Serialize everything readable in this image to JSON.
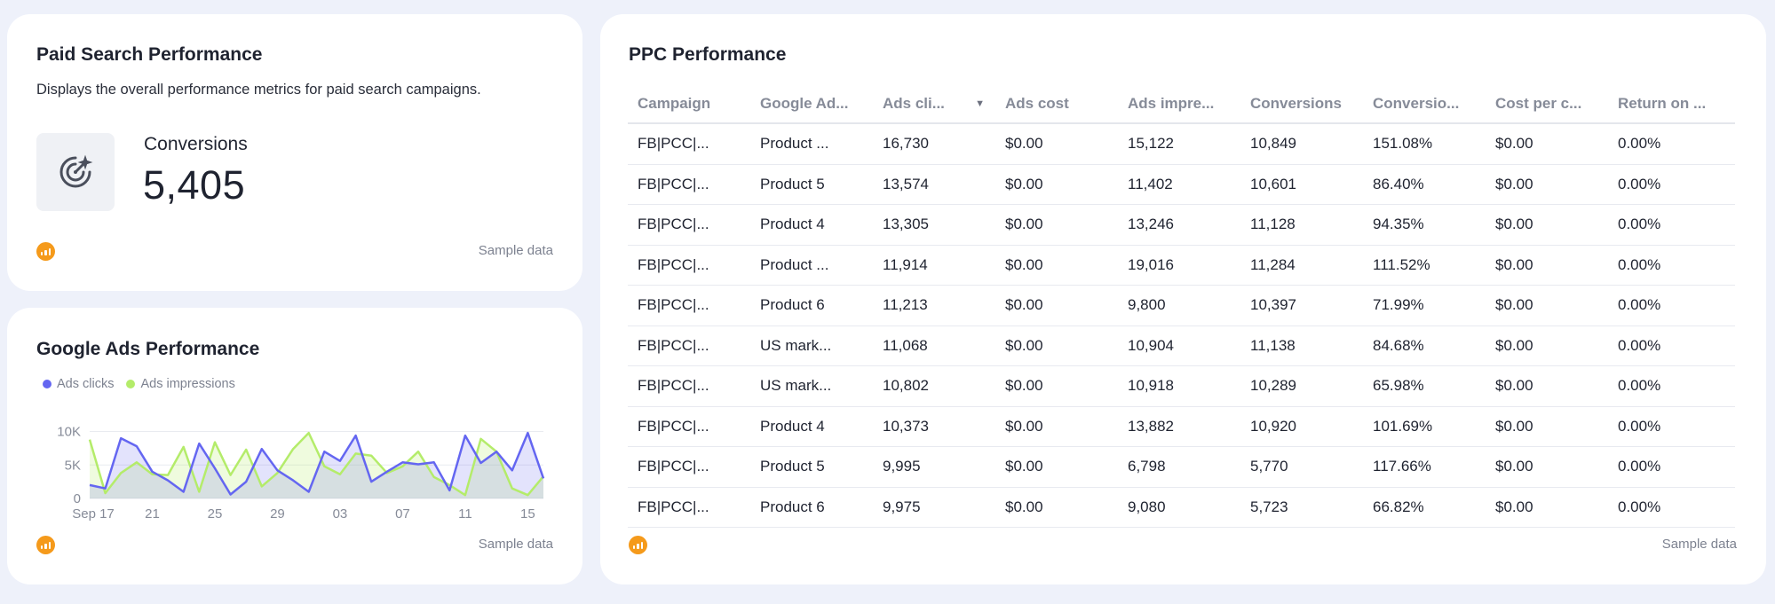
{
  "paid_search": {
    "title": "Paid Search Performance",
    "description": "Displays the overall performance metrics for paid search campaigns.",
    "metric_label": "Conversions",
    "metric_value": "5,405",
    "icon": "target-sparkle-icon",
    "footer": "Sample data"
  },
  "google_ads": {
    "title": "Google Ads Performance",
    "footer": "Sample data",
    "chart_data": {
      "type": "area",
      "legend_position": "top-left",
      "grid": true,
      "x_tick_labels": [
        "Sep 17",
        "21",
        "25",
        "29",
        "03",
        "07",
        "11",
        "15"
      ],
      "y_tick_labels": [
        "10K",
        "5K",
        "0"
      ],
      "ylim": [
        0,
        11000
      ],
      "series": [
        {
          "name": "Ads clicks",
          "color": "#6466f1",
          "values": [
            2000,
            1500,
            9000,
            7800,
            4000,
            2700,
            1000,
            8200,
            4500,
            600,
            2500,
            7400,
            4200,
            2700,
            1000,
            7000,
            5600,
            9400,
            2500,
            4000,
            5400,
            5100,
            5400,
            1200,
            9400,
            5300,
            7000,
            4200,
            9800,
            3000
          ]
        },
        {
          "name": "Ads impressions",
          "color": "#b4ec6a",
          "values": [
            8800,
            800,
            3800,
            5400,
            3600,
            3500,
            7700,
            1000,
            8400,
            3500,
            7300,
            1800,
            3800,
            7400,
            9800,
            4800,
            3600,
            6700,
            6400,
            3800,
            4800,
            7000,
            3200,
            2000,
            500,
            8900,
            7000,
            1500,
            500,
            3300
          ]
        }
      ]
    }
  },
  "ppc": {
    "title": "PPC Performance",
    "footer": "Sample data",
    "sort_column": "Ads cli...",
    "columns": [
      "Campaign",
      "Google Ad...",
      "Ads cli...",
      "Ads cost",
      "Ads impre...",
      "Conversions",
      "Conversio...",
      "Cost per c...",
      "Return on ..."
    ],
    "rows": [
      [
        "FB|PCC|...",
        "Product ...",
        "16,730",
        "$0.00",
        "15,122",
        "10,849",
        "151.08%",
        "$0.00",
        "0.00%"
      ],
      [
        "FB|PCC|...",
        "Product 5",
        "13,574",
        "$0.00",
        "11,402",
        "10,601",
        "86.40%",
        "$0.00",
        "0.00%"
      ],
      [
        "FB|PCC|...",
        "Product 4",
        "13,305",
        "$0.00",
        "13,246",
        "11,128",
        "94.35%",
        "$0.00",
        "0.00%"
      ],
      [
        "FB|PCC|...",
        "Product ...",
        "11,914",
        "$0.00",
        "19,016",
        "11,284",
        "111.52%",
        "$0.00",
        "0.00%"
      ],
      [
        "FB|PCC|...",
        "Product 6",
        "11,213",
        "$0.00",
        "9,800",
        "10,397",
        "71.99%",
        "$0.00",
        "0.00%"
      ],
      [
        "FB|PCC|...",
        "US mark...",
        "11,068",
        "$0.00",
        "10,904",
        "11,138",
        "84.68%",
        "$0.00",
        "0.00%"
      ],
      [
        "FB|PCC|...",
        "US mark...",
        "10,802",
        "$0.00",
        "10,918",
        "10,289",
        "65.98%",
        "$0.00",
        "0.00%"
      ],
      [
        "FB|PCC|...",
        "Product 4",
        "10,373",
        "$0.00",
        "13,882",
        "10,920",
        "101.69%",
        "$0.00",
        "0.00%"
      ],
      [
        "FB|PCC|...",
        "Product 5",
        "9,995",
        "$0.00",
        "6,798",
        "5,770",
        "117.66%",
        "$0.00",
        "0.00%"
      ],
      [
        "FB|PCC|...",
        "Product 6",
        "9,975",
        "$0.00",
        "9,080",
        "5,723",
        "66.82%",
        "$0.00",
        "0.00%"
      ]
    ]
  },
  "colors": {
    "page_bg": "#eef1fa",
    "card_bg": "#ffffff",
    "brand_logo": "#f59a1b",
    "clicks": "#6466f1",
    "impressions": "#b4ec6a"
  }
}
